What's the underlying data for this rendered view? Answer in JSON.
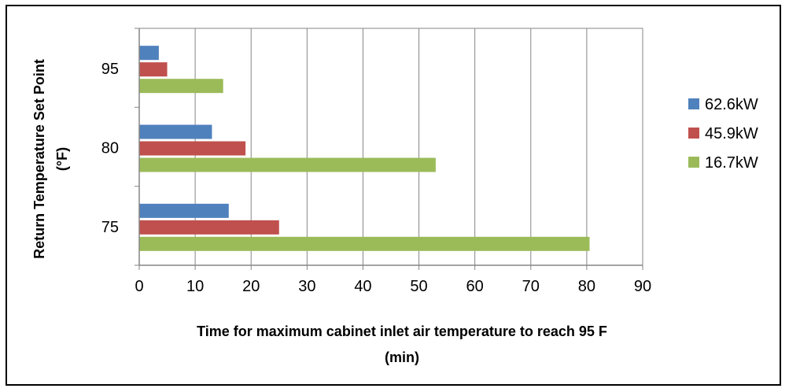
{
  "chart_data": {
    "type": "bar",
    "orientation": "horizontal",
    "categories": [
      "75",
      "80",
      "95"
    ],
    "series": [
      {
        "name": "62.6kW",
        "values": [
          16,
          13,
          3.5
        ],
        "color": "#4F81BD"
      },
      {
        "name": "45.9kW",
        "values": [
          25,
          19,
          5
        ],
        "color": "#C0504D"
      },
      {
        "name": "16.7kW",
        "values": [
          80.5,
          53,
          15
        ],
        "color": "#9BBB59"
      }
    ],
    "xlim": [
      0,
      90
    ],
    "xticks": [
      0,
      10,
      20,
      30,
      40,
      50,
      60,
      70,
      80,
      90
    ],
    "xlabel_line1": "Time for maximum cabinet inlet air temperature to reach 95  F",
    "xlabel_line2": "(min)",
    "ylabel_line1": "Return Temperature Set Point",
    "ylabel_line2": "(°F)",
    "grid": true,
    "legend_position": "right"
  }
}
